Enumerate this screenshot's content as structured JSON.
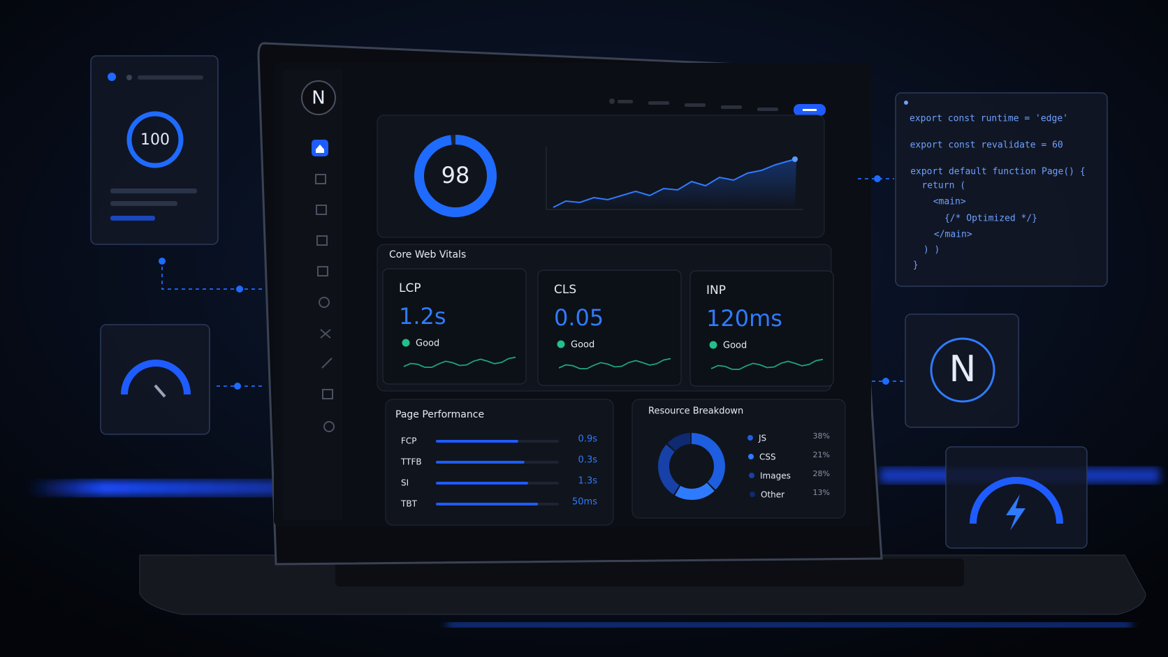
{
  "left_panel": {
    "score": 100
  },
  "logo": "N",
  "code": [
    "export const runtime = 'edge'",
    "export const revalidate = 60",
    "export default function Page() {",
    "  return (",
    "    <main>",
    "      {/* Optimized */}",
    "    </main>",
    "  ) )",
    "}"
  ],
  "dashboard": {
    "score": 98,
    "core_web_vitals": {
      "title": "Core Web Vitals",
      "metrics": [
        {
          "name": "LCP",
          "value": "1.2s",
          "status": "Good"
        },
        {
          "name": "CLS",
          "value": "0.05",
          "status": "Good"
        },
        {
          "name": "INP",
          "value": "120ms",
          "status": "Good"
        }
      ]
    },
    "page_performance": {
      "title": "Page Performance",
      "rows": [
        {
          "label": "FCP",
          "value": "0.9s"
        },
        {
          "label": "TTFB",
          "value": "0.3s"
        },
        {
          "label": "SI",
          "value": "1.3s"
        },
        {
          "label": "TBT",
          "value": "50ms"
        }
      ]
    },
    "resource_breakdown": {
      "title": "Resource Breakdown",
      "type": "donut",
      "categories": [
        "JS",
        "CSS",
        "Images",
        "Other"
      ],
      "values": [
        38,
        21,
        28,
        13
      ],
      "value_labels": [
        "38%",
        "21%",
        "28%",
        "13%"
      ],
      "colors": [
        "#1d5fe0",
        "#2f7bff",
        "#1740a8",
        "#0f2a70"
      ]
    }
  }
}
